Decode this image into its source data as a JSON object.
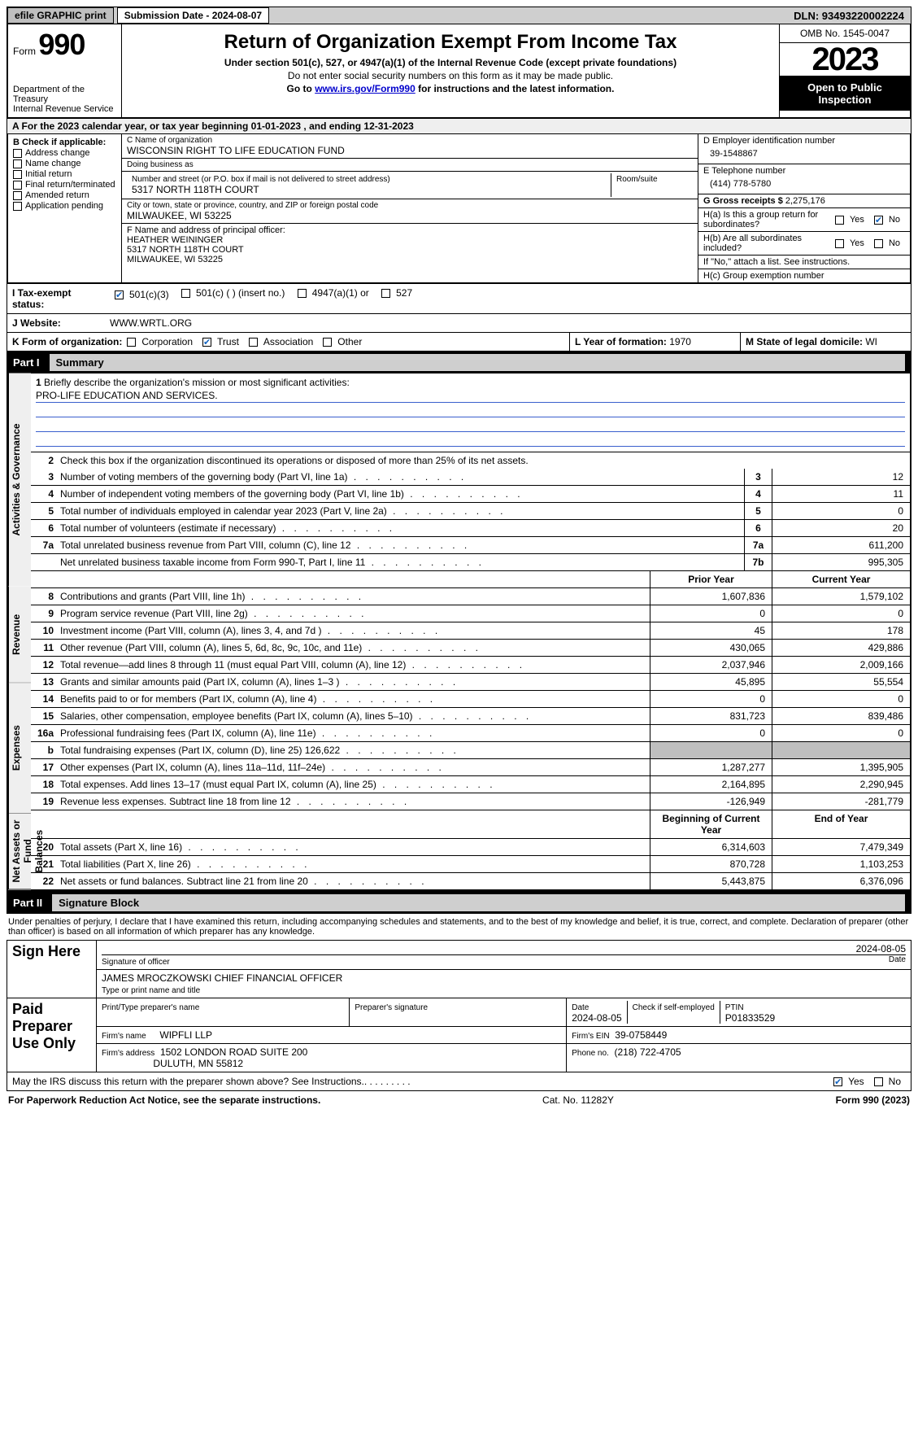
{
  "topbar": {
    "efile_btn": "efile GRAPHIC print",
    "submission_date_label": "Submission Date - 2024-08-07",
    "dln_label": "DLN: 93493220002224"
  },
  "header": {
    "form_label": "Form",
    "form_number": "990",
    "dept": "Department of the Treasury",
    "irs": "Internal Revenue Service",
    "title": "Return of Organization Exempt From Income Tax",
    "subtitle": "Under section 501(c), 527, or 4947(a)(1) of the Internal Revenue Code (except private foundations)",
    "ssn_note": "Do not enter social security numbers on this form as it may be made public.",
    "goto_prefix": "Go to ",
    "goto_link": "www.irs.gov/Form990",
    "goto_suffix": " for instructions and the latest information.",
    "omb": "OMB No. 1545-0047",
    "year": "2023",
    "inspect1": "Open to Public",
    "inspect2": "Inspection"
  },
  "line_a": {
    "prefix": "A  For the 2023 calendar year, or tax year beginning ",
    "begin": "01-01-2023",
    "mid": "   , and ending ",
    "end": "12-31-2023"
  },
  "box_b": {
    "title": "B Check if applicable:",
    "addr_change": "Address change",
    "name_change": "Name change",
    "initial": "Initial return",
    "final": "Final return/terminated",
    "amended": "Amended return",
    "app_pending": "Application pending"
  },
  "box_c": {
    "name_label": "C Name of organization",
    "name": "WISCONSIN RIGHT TO LIFE EDUCATION FUND",
    "dba_label": "Doing business as",
    "dba": "",
    "street_label": "Number and street (or P.O. box if mail is not delivered to street address)",
    "room_label": "Room/suite",
    "street": "5317 NORTH 118TH COURT",
    "city_label": "City or town, state or province, country, and ZIP or foreign postal code",
    "city": "MILWAUKEE, WI  53225"
  },
  "box_d": {
    "label": "D Employer identification number",
    "value": "39-1548867"
  },
  "box_e": {
    "label": "E Telephone number",
    "value": "(414) 778-5780"
  },
  "box_g": {
    "label": "G Gross receipts $",
    "value": "2,275,176"
  },
  "box_f": {
    "label": "F  Name and address of principal officer:",
    "name": "HEATHER WEININGER",
    "street": "5317 NORTH 118TH COURT",
    "city": "MILWAUKEE, WI  53225"
  },
  "box_h": {
    "ha_label": "H(a)  Is this a group return for subordinates?",
    "hb_label": "H(b)  Are all subordinates included?",
    "hb_note": "If \"No,\" attach a list. See instructions.",
    "hc_label": "H(c)  Group exemption number",
    "yes": "Yes",
    "no": "No"
  },
  "line_i": {
    "label": "I   Tax-exempt status:",
    "c3": "501(c)(3)",
    "c_ins": "501(c) (  ) (insert no.)",
    "a1": "4947(a)(1) or",
    "s527": "527"
  },
  "line_j": {
    "label": "J   Website:",
    "value": "WWW.WRTL.ORG"
  },
  "line_k": {
    "label": "K Form of organization:",
    "corp": "Corporation",
    "trust": "Trust",
    "assoc": "Association",
    "other": "Other"
  },
  "line_l": {
    "label": "L Year of formation: ",
    "value": "1970"
  },
  "line_m": {
    "label": "M State of legal domicile: ",
    "value": "WI"
  },
  "part1": {
    "part_num": "Part I",
    "title": "Summary",
    "q1_label": "Briefly describe the organization's mission or most significant activities:",
    "q1_value": "PRO-LIFE EDUCATION AND SERVICES.",
    "q2": "Check this box      if the organization discontinued its operations or disposed of more than 25% of its net assets.",
    "rows_gov": [
      {
        "n": "3",
        "desc": "Number of voting members of the governing body (Part VI, line 1a)",
        "key": "3",
        "val": "12"
      },
      {
        "n": "4",
        "desc": "Number of independent voting members of the governing body (Part VI, line 1b)",
        "key": "4",
        "val": "11"
      },
      {
        "n": "5",
        "desc": "Total number of individuals employed in calendar year 2023 (Part V, line 2a)",
        "key": "5",
        "val": "0"
      },
      {
        "n": "6",
        "desc": "Total number of volunteers (estimate if necessary)",
        "key": "6",
        "val": "20"
      },
      {
        "n": "7a",
        "desc": "Total unrelated business revenue from Part VIII, column (C), line 12",
        "key": "7a",
        "val": "611,200"
      },
      {
        "n": "",
        "desc": "Net unrelated business taxable income from Form 990-T, Part I, line 11",
        "key": "7b",
        "val": "995,305"
      }
    ],
    "prior_label": "Prior Year",
    "current_label": "Current Year",
    "rows_rev": [
      {
        "n": "8",
        "desc": "Contributions and grants (Part VIII, line 1h)",
        "py": "1,607,836",
        "cy": "1,579,102"
      },
      {
        "n": "9",
        "desc": "Program service revenue (Part VIII, line 2g)",
        "py": "0",
        "cy": "0"
      },
      {
        "n": "10",
        "desc": "Investment income (Part VIII, column (A), lines 3, 4, and 7d )",
        "py": "45",
        "cy": "178"
      },
      {
        "n": "11",
        "desc": "Other revenue (Part VIII, column (A), lines 5, 6d, 8c, 9c, 10c, and 11e)",
        "py": "430,065",
        "cy": "429,886"
      },
      {
        "n": "12",
        "desc": "Total revenue—add lines 8 through 11 (must equal Part VIII, column (A), line 12)",
        "py": "2,037,946",
        "cy": "2,009,166"
      }
    ],
    "rows_exp": [
      {
        "n": "13",
        "desc": "Grants and similar amounts paid (Part IX, column (A), lines 1–3 )",
        "py": "45,895",
        "cy": "55,554"
      },
      {
        "n": "14",
        "desc": "Benefits paid to or for members (Part IX, column (A), line 4)",
        "py": "0",
        "cy": "0"
      },
      {
        "n": "15",
        "desc": "Salaries, other compensation, employee benefits (Part IX, column (A), lines 5–10)",
        "py": "831,723",
        "cy": "839,486"
      },
      {
        "n": "16a",
        "desc": "Professional fundraising fees (Part IX, column (A), line 11e)",
        "py": "0",
        "cy": "0"
      },
      {
        "n": "b",
        "desc": "Total fundraising expenses (Part IX, column (D), line 25) 126,622",
        "py": "__GRAY__",
        "cy": "__GRAY__"
      },
      {
        "n": "17",
        "desc": "Other expenses (Part IX, column (A), lines 11a–11d, 11f–24e)",
        "py": "1,287,277",
        "cy": "1,395,905"
      },
      {
        "n": "18",
        "desc": "Total expenses. Add lines 13–17 (must equal Part IX, column (A), line 25)",
        "py": "2,164,895",
        "cy": "2,290,945"
      },
      {
        "n": "19",
        "desc": "Revenue less expenses. Subtract line 18 from line 12",
        "py": "-126,949",
        "cy": "-281,779"
      }
    ],
    "begin_label": "Beginning of Current Year",
    "end_label": "End of Year",
    "rows_net": [
      {
        "n": "20",
        "desc": "Total assets (Part X, line 16)",
        "py": "6,314,603",
        "cy": "7,479,349"
      },
      {
        "n": "21",
        "desc": "Total liabilities (Part X, line 26)",
        "py": "870,728",
        "cy": "1,103,253"
      },
      {
        "n": "22",
        "desc": "Net assets or fund balances. Subtract line 21 from line 20",
        "py": "5,443,875",
        "cy": "6,376,096"
      }
    ],
    "vtab_gov": "Activities & Governance",
    "vtab_rev": "Revenue",
    "vtab_exp": "Expenses",
    "vtab_net": "Net Assets or Fund Balances"
  },
  "part2": {
    "part_num": "Part II",
    "title": "Signature Block",
    "perjury": "Under penalties of perjury, I declare that I have examined this return, including accompanying schedules and statements, and to the best of my knowledge and belief, it is true, correct, and complete. Declaration of preparer (other than officer) is based on all information of which preparer has any knowledge.",
    "sign_here": "Sign Here",
    "sig_officer_label": "Signature of officer",
    "sig_date": "2024-08-05",
    "officer_name": "JAMES MROCZKOWSKI CHIEF FINANCIAL OFFICER",
    "type_label": "Type or print name and title",
    "date_label": "Date",
    "paid": "Paid Preparer Use Only",
    "prep_name_label": "Print/Type preparer's name",
    "prep_sig_label": "Preparer's signature",
    "prep_date": "2024-08-05",
    "self_emp_label": "Check        if self-employed",
    "ptin_label": "PTIN",
    "ptin": "P01833529",
    "firm_name_label": "Firm's name",
    "firm_name": "WIPFLI LLP",
    "firm_ein_label": "Firm's EIN",
    "firm_ein": "39-0758449",
    "firm_addr_label": "Firm's address",
    "firm_addr1": "1502 LONDON ROAD SUITE 200",
    "firm_addr2": "DULUTH, MN  55812",
    "phone_label": "Phone no.",
    "phone": "(218) 722-4705"
  },
  "discuss": {
    "text": "May the IRS discuss this return with the preparer shown above? See Instructions.",
    "yes": "Yes",
    "no": "No"
  },
  "bottom": {
    "left": "For Paperwork Reduction Act Notice, see the separate instructions.",
    "mid": "Cat. No. 11282Y",
    "right": "Form 990 (2023)"
  },
  "style": {
    "brand_link_color": "#0000cc",
    "check_color": "#1565c0",
    "gray_bg": "#bfbfbf",
    "stripe_bg": "#efefef"
  }
}
